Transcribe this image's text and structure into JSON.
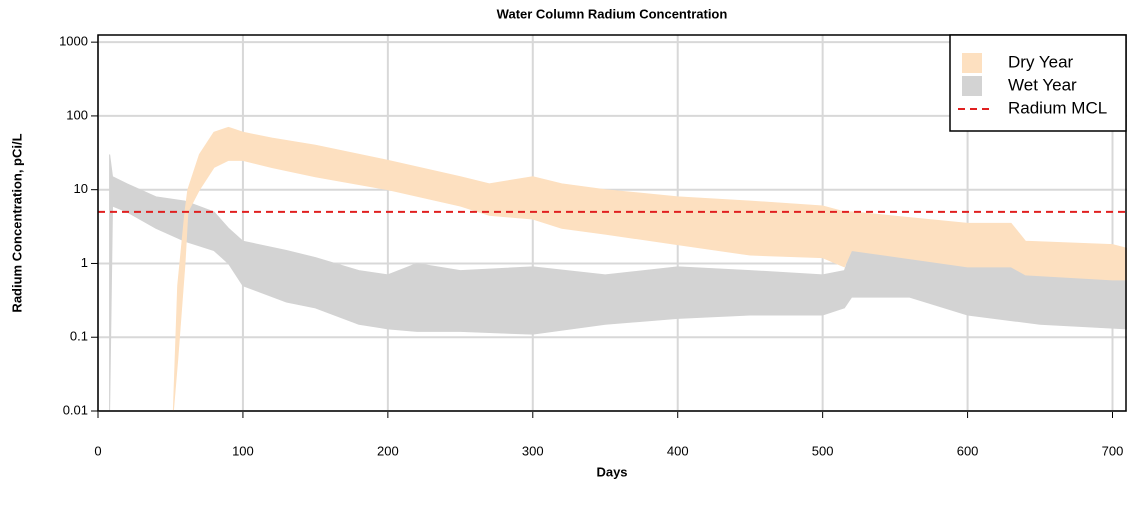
{
  "chart_data": {
    "type": "band",
    "title": "Water Column Radium Concentration",
    "xlabel": "Days",
    "ylabel": "Radium Concentration, pCi/L",
    "xlim": [
      0,
      710
    ],
    "ylim": [
      0.01,
      1250
    ],
    "yscale": "log",
    "xticks": [
      0,
      100,
      200,
      300,
      400,
      500,
      600,
      700
    ],
    "yticks": [
      0.01,
      0.1,
      1,
      10,
      100,
      1000
    ],
    "grid": true,
    "legend": "upper right",
    "series": [
      {
        "name": "Dry Year",
        "color": "#fde0c0",
        "x": [
          52,
          55,
          60,
          62,
          70,
          80,
          90,
          100,
          120,
          150,
          200,
          250,
          270,
          300,
          320,
          350,
          400,
          450,
          500,
          515,
          520,
          600,
          630,
          640,
          700,
          710
        ],
        "lower": [
          0.01,
          0.05,
          1,
          5,
          10,
          20,
          25,
          25,
          20,
          15,
          10,
          6,
          4.5,
          4,
          3,
          2.5,
          1.8,
          1.3,
          1.2,
          0.9,
          1.5,
          0.9,
          0.9,
          0.7,
          0.6,
          0.6
        ],
        "upper": [
          0.01,
          0.5,
          5,
          10,
          30,
          60,
          70,
          60,
          50,
          40,
          25,
          15,
          12,
          15,
          12,
          10,
          8,
          7,
          6,
          5,
          5,
          3.5,
          3.5,
          2,
          1.8,
          1.6
        ]
      },
      {
        "name": "Wet Year",
        "color": "#d3d3d3",
        "x": [
          8,
          10,
          20,
          40,
          60,
          80,
          90,
          100,
          130,
          150,
          180,
          200,
          220,
          250,
          300,
          350,
          400,
          450,
          500,
          515,
          520,
          560,
          600,
          650,
          710
        ],
        "lower": [
          0.01,
          6,
          5,
          3,
          2,
          1.5,
          1,
          0.5,
          0.3,
          0.25,
          0.15,
          0.13,
          0.12,
          0.12,
          0.11,
          0.15,
          0.18,
          0.2,
          0.2,
          0.25,
          0.35,
          0.35,
          0.2,
          0.15,
          0.13
        ],
        "upper": [
          30,
          15,
          12,
          8,
          7,
          5,
          3,
          2,
          1.5,
          1.2,
          0.8,
          0.7,
          1,
          0.8,
          0.9,
          0.7,
          0.9,
          0.8,
          0.7,
          0.8,
          1.5,
          1.3,
          1,
          1,
          0.9
        ]
      }
    ],
    "hlines": [
      {
        "name": "Radium MCL",
        "value": 5,
        "color": "#e02020"
      }
    ]
  }
}
